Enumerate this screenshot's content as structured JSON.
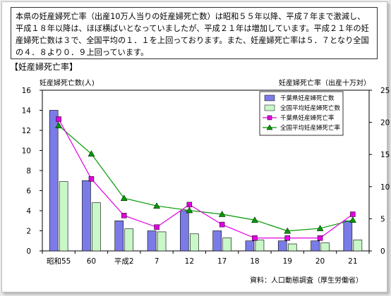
{
  "paragraph": "本県の妊産婦死亡率（出産10万人当りの妊産婦死亡数）は昭和５５年以降、平成７年まで激減し、平成１８年以降は、ほぼ横ばいとなっていましたが、平成２１年は増加しています。平成２１年の妊産婦死亡数は３で、全国平均の１．１を上回っております。また、妊産婦死亡率は５．７となり全国の４．８より０．９上回っています。",
  "section_title": "【妊産婦死亡率】",
  "source": "資料：人口動態調査（厚生労働省）",
  "colors": {
    "chiba_count": "#7b7be8",
    "national_count": "#c8f7c8",
    "chiba_rate": "#e000e0",
    "national_rate": "#009900"
  },
  "chart_data": {
    "type": "bar+line",
    "categories": [
      "昭和55",
      "60",
      "平成2",
      "7",
      "12",
      "17",
      "18",
      "19",
      "20",
      "21"
    ],
    "left_axis": {
      "label": "妊産婦死亡数(人)",
      "min": 0,
      "max": 16,
      "ticks": [
        "0",
        "2",
        "4",
        "6",
        "8",
        "10",
        "12",
        "14",
        "16"
      ]
    },
    "right_axis": {
      "label": "妊産婦死亡率（出産十万対）",
      "min": 0,
      "max": 25,
      "ticks": [
        "0",
        "5",
        "10",
        "15",
        "20",
        "25"
      ]
    },
    "series": [
      {
        "name": "千葉県妊産婦死亡数",
        "type": "bar",
        "axis": "left",
        "values": [
          14,
          7,
          3,
          2,
          4,
          2,
          1,
          1,
          1,
          3
        ]
      },
      {
        "name": "全国平均妊産婦死亡数",
        "type": "bar",
        "axis": "left",
        "values": [
          6.9,
          4.8,
          2.2,
          1.9,
          1.7,
          1.3,
          1.1,
          0.7,
          0.8,
          1.1
        ]
      },
      {
        "name": "千葉県妊産婦死亡率",
        "type": "line",
        "axis": "right",
        "values": [
          20.5,
          11.2,
          5.5,
          3.7,
          7.2,
          4.1,
          2.0,
          2.0,
          2.0,
          5.7
        ]
      },
      {
        "name": "全国平均妊産婦死亡率",
        "type": "line",
        "axis": "right",
        "values": [
          19.5,
          15.1,
          8.2,
          7.0,
          6.3,
          5.7,
          4.8,
          3.1,
          3.5,
          4.8
        ]
      }
    ],
    "grid": false,
    "legend_position": "top-right"
  }
}
